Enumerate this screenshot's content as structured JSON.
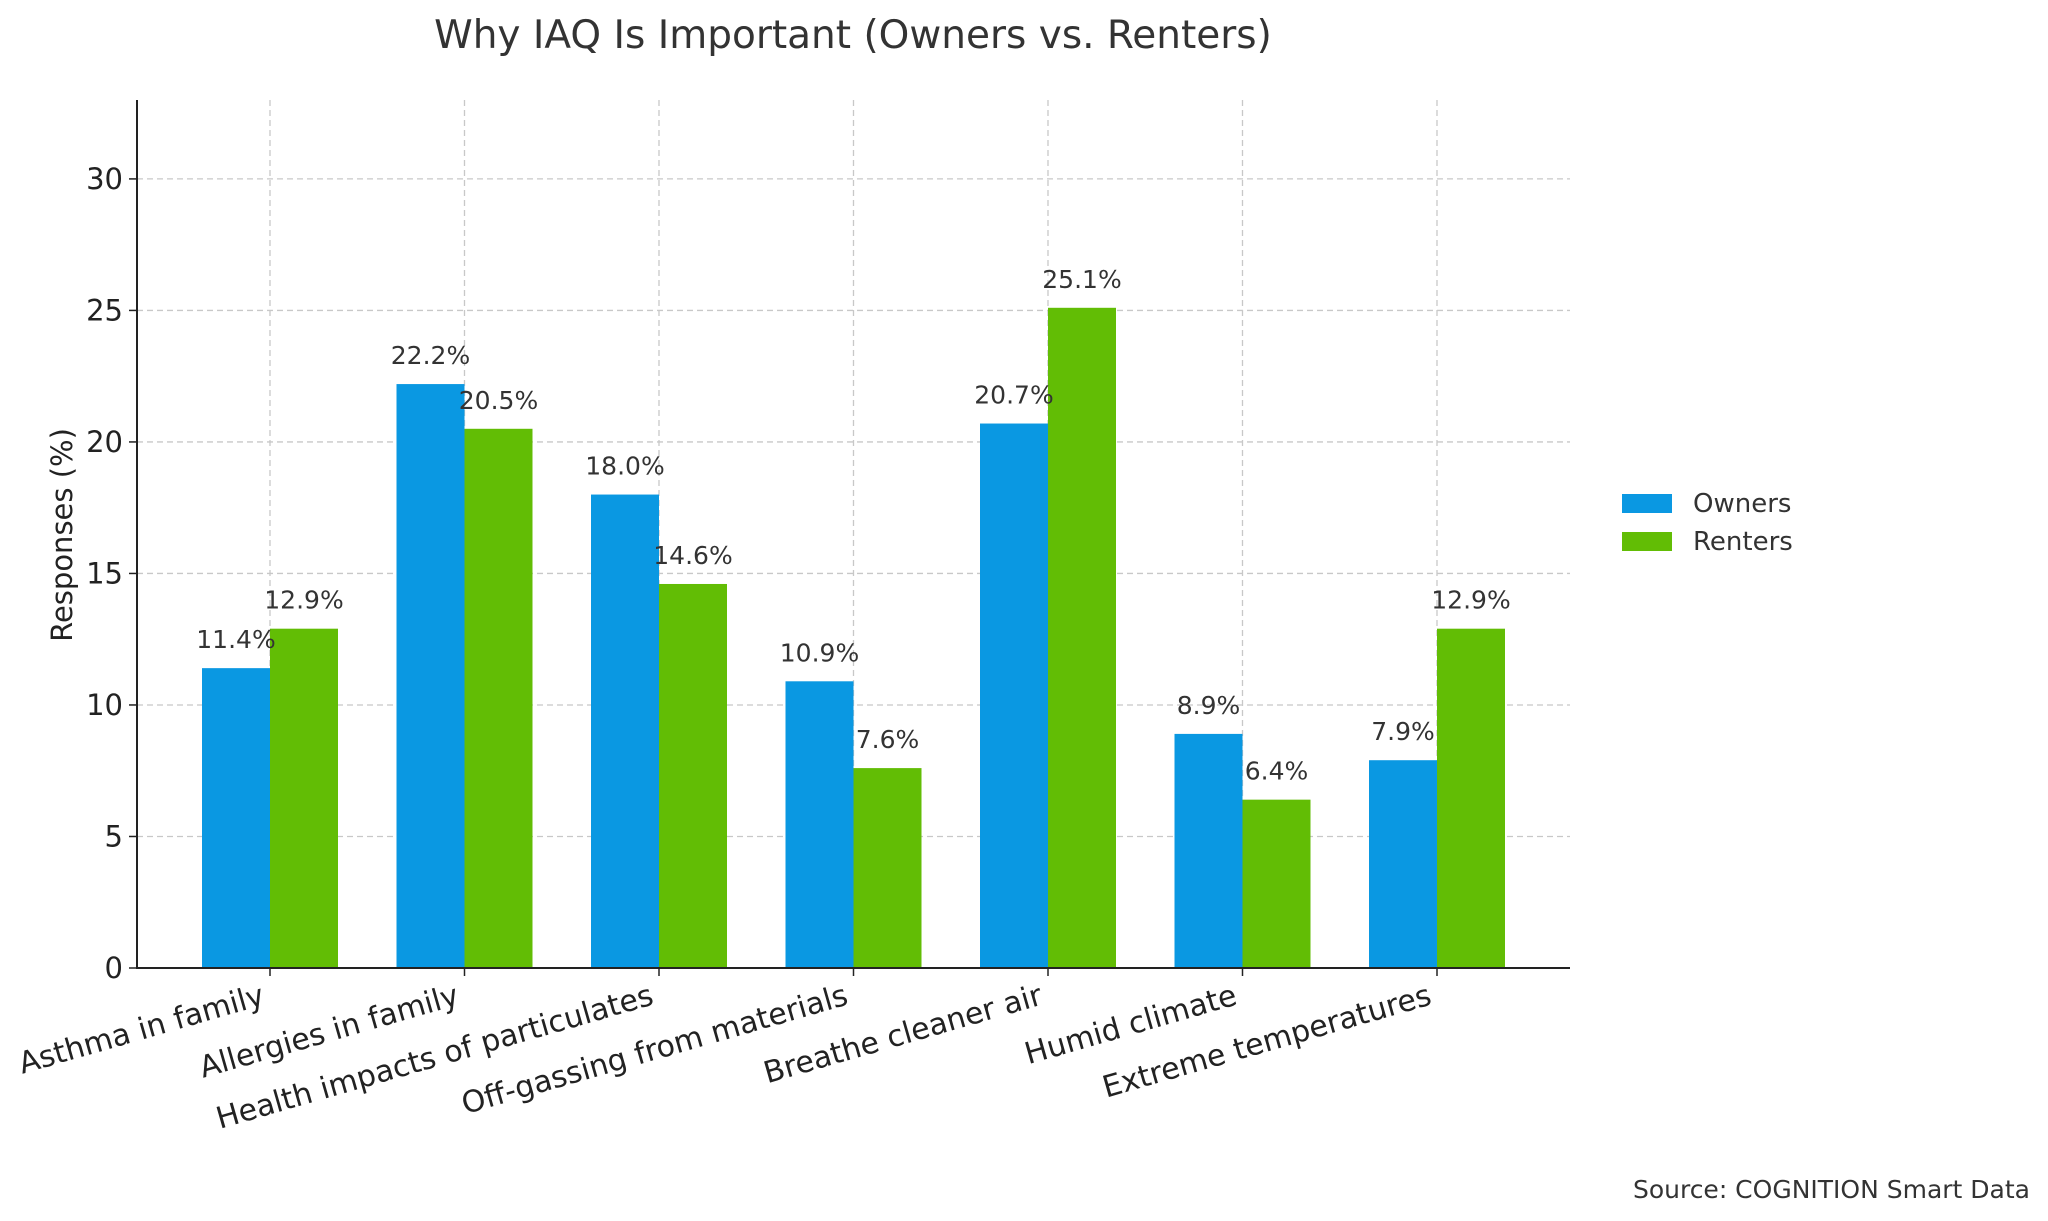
{
  "chart_data": {
    "type": "bar",
    "title": "Why IAQ Is Important (Owners vs. Renters)",
    "xlabel": "",
    "ylabel": "Responses (%)",
    "categories": [
      "Asthma in family",
      "Allergies in family",
      "Health impacts of particulates",
      "Off-gassing from materials",
      "Breathe cleaner air",
      "Humid climate",
      "Extreme temperatures"
    ],
    "series": [
      {
        "name": "Owners",
        "color": "#0a98e2",
        "values": [
          11.4,
          22.2,
          18.0,
          10.9,
          20.7,
          8.9,
          7.9
        ]
      },
      {
        "name": "Renters",
        "color": "#62bd05",
        "values": [
          12.9,
          20.5,
          14.6,
          7.6,
          25.1,
          6.4,
          12.9
        ]
      }
    ],
    "ylim": [
      0,
      33
    ],
    "yticks": [
      0,
      5,
      10,
      15,
      20,
      25,
      30
    ],
    "value_label_suffix": "%",
    "grid": true,
    "legend_position": "right",
    "source": "Source: COGNITION Smart Data"
  }
}
